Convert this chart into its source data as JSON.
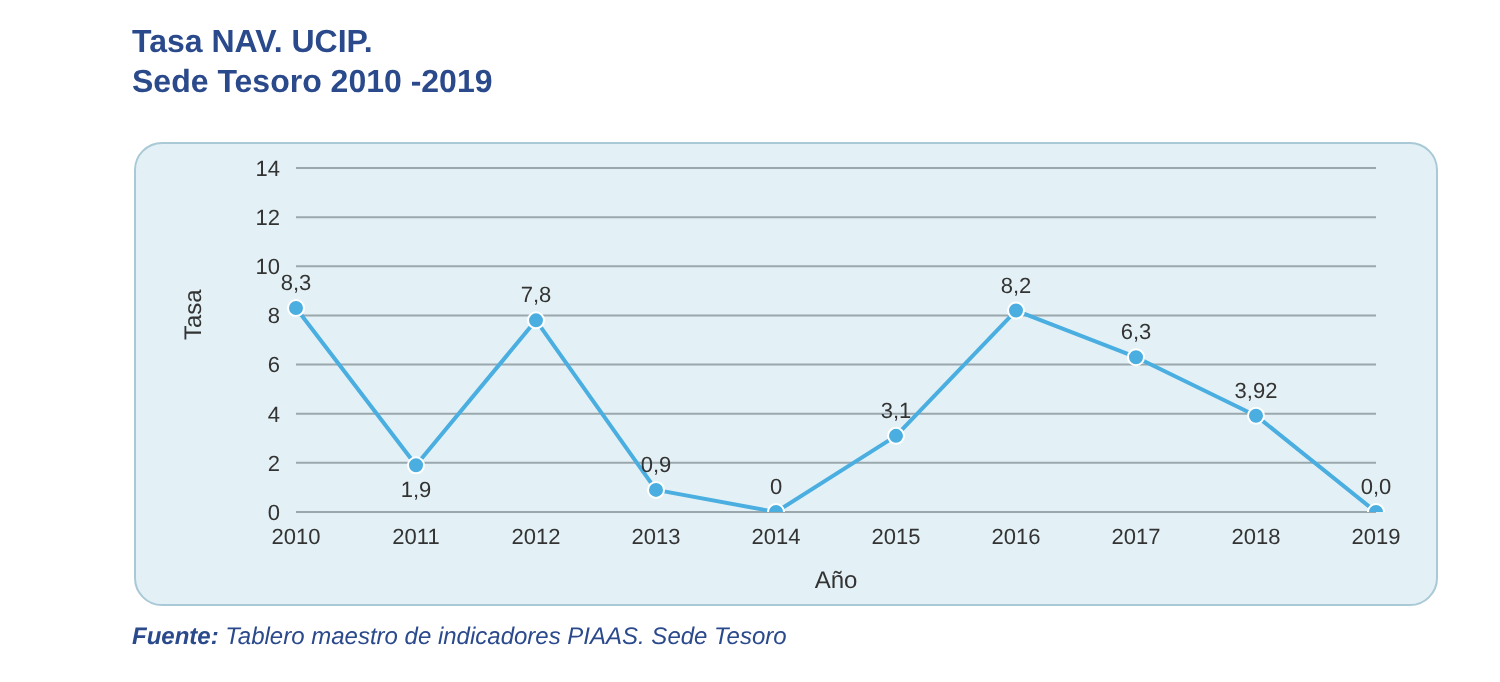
{
  "chart_data": {
    "type": "line",
    "title": "Tasa NAV. UCIP.",
    "subtitle": "Sede Tesoro 2010 -2019",
    "xlabel": "Año",
    "ylabel": "Tasa",
    "categories": [
      "2010",
      "2011",
      "2012",
      "2013",
      "2014",
      "2015",
      "2016",
      "2017",
      "2018",
      "2019"
    ],
    "series": [
      {
        "color": "#4aaee0",
        "values": [
          8.3,
          1.9,
          7.8,
          0.9,
          0,
          3.1,
          8.2,
          6.3,
          3.92,
          0.0
        ],
        "value_labels": [
          "8,3",
          "1,9",
          "7,8",
          "0,9",
          "0",
          "3,1",
          "8,2",
          "6,3",
          "3,92",
          "0,0"
        ]
      }
    ],
    "ylim": [
      0,
      14
    ],
    "yticks": [
      0,
      2,
      4,
      6,
      8,
      10,
      12,
      14
    ],
    "grid": "y",
    "marker": "circle",
    "line_style": "solid",
    "annotations": [
      "Fuente: Tablero maestro de indicadores PIAAS. Sede Tesoro"
    ]
  }
}
